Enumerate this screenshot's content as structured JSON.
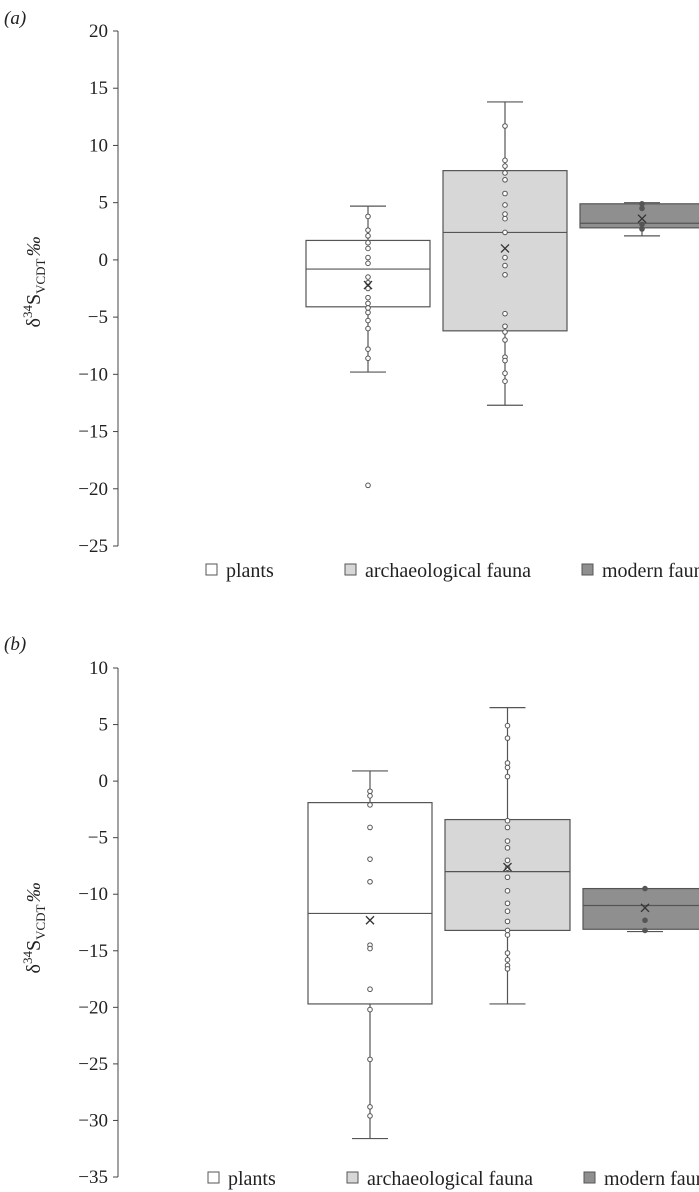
{
  "chart_data": [
    {
      "panel_label": "(a)",
      "type": "box",
      "ylabel_prefix": "δ",
      "ylabel_sup": "34",
      "ylabel_main": "S",
      "ylabel_sub": "VCDT",
      "ylabel_suffix": "‰",
      "ylim": [
        -25,
        20
      ],
      "yticks": [
        -25,
        -20,
        -15,
        -10,
        -5,
        0,
        5,
        10,
        15,
        20
      ],
      "series": [
        {
          "name": "plants",
          "color": "#ffffff",
          "min": -9.8,
          "q1": -4.1,
          "median": -0.8,
          "q3": 1.7,
          "max": 4.7,
          "mean": -2.2,
          "points": [
            3.8,
            2.6,
            2.1,
            1.5,
            1.0,
            0.2,
            -0.3,
            -1.5,
            -2.0,
            -2.5,
            -3.3,
            -3.8,
            -4.2,
            -4.6,
            -5.3,
            -6.0,
            -7.8,
            -8.6,
            -19.7
          ]
        },
        {
          "name": "archaeological fauna",
          "color": "#d7d7d7",
          "min": -12.7,
          "q1": -6.2,
          "median": 2.4,
          "q3": 7.8,
          "max": 13.8,
          "mean": 1.0,
          "points": [
            11.7,
            8.7,
            8.2,
            7.6,
            7.0,
            5.8,
            4.8,
            4.0,
            3.6,
            2.4,
            0.2,
            -0.5,
            -1.3,
            -4.7,
            -5.8,
            -6.3,
            -7.0,
            -8.5,
            -8.8,
            -9.9,
            -10.6
          ]
        },
        {
          "name": "modern fauna",
          "color": "#8f8f8f",
          "min": 2.1,
          "q1": 2.8,
          "median": 3.2,
          "q3": 4.9,
          "max": 5.0,
          "mean": 3.6,
          "points": [
            4.9,
            4.5,
            3.1,
            2.7
          ]
        }
      ]
    },
    {
      "panel_label": "(b)",
      "type": "box",
      "ylabel_prefix": "δ",
      "ylabel_sup": "34",
      "ylabel_main": "S",
      "ylabel_sub": "VCDT",
      "ylabel_suffix": "‰",
      "ylim": [
        -35,
        10
      ],
      "yticks": [
        -35,
        -30,
        -25,
        -20,
        -15,
        -10,
        -5,
        0,
        5,
        10
      ],
      "series": [
        {
          "name": "plants",
          "color": "#ffffff",
          "min": -31.6,
          "q1": -19.7,
          "median": -11.7,
          "q3": -1.9,
          "max": 0.9,
          "mean": -12.3,
          "points": [
            -0.9,
            -1.3,
            -2.1,
            -4.1,
            -6.9,
            -8.9,
            -14.5,
            -14.8,
            -18.4,
            -20.2,
            -24.6,
            -28.8,
            -29.6
          ]
        },
        {
          "name": "archaeological fauna",
          "color": "#d7d7d7",
          "min": -19.7,
          "q1": -13.2,
          "median": -8.0,
          "q3": -3.4,
          "max": 6.5,
          "mean": -7.6,
          "points": [
            4.9,
            3.8,
            1.6,
            1.2,
            0.4,
            -3.5,
            -4.1,
            -5.3,
            -5.9,
            -7.0,
            -7.7,
            -8.5,
            -9.7,
            -10.8,
            -11.5,
            -12.4,
            -13.2,
            -13.6,
            -15.2,
            -15.8,
            -16.3,
            -16.6
          ]
        },
        {
          "name": "modern fauna",
          "color": "#8f8f8f",
          "min": -13.3,
          "q1": -13.1,
          "median": -11.0,
          "q3": -9.5,
          "max": -9.5,
          "mean": -11.2,
          "points": [
            -9.5,
            -12.3,
            -13.2
          ]
        }
      ]
    }
  ],
  "legends": [
    {
      "items": [
        {
          "label": "plants",
          "color": "#ffffff"
        },
        {
          "label": "archaeological fauna",
          "color": "#d7d7d7"
        },
        {
          "label": "modern fauna",
          "color": "#8f8f8f"
        }
      ]
    },
    {
      "items": [
        {
          "label": "plants",
          "color": "#ffffff"
        },
        {
          "label": "archaeological fauna",
          "color": "#d7d7d7"
        },
        {
          "label": "modern fauna",
          "color": "#8f8f8f"
        }
      ]
    }
  ]
}
